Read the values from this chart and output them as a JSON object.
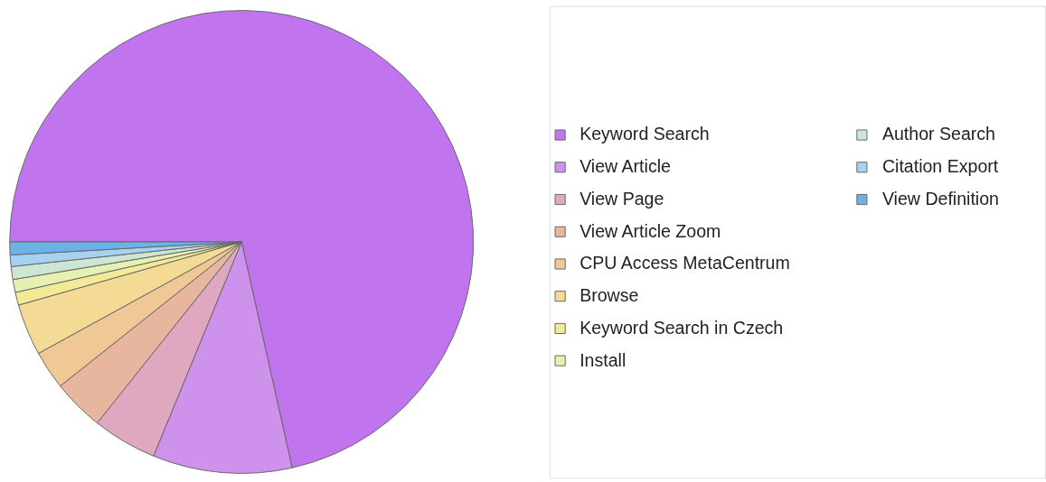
{
  "chart_data": {
    "type": "pie",
    "categories": [
      "Keyword Search",
      "View Article",
      "View Page",
      "View Article Zoom",
      "CPU Access MetaCentrum",
      "Browse",
      "Keyword Search in Czech",
      "Install",
      "Author Search",
      "Citation Export",
      "View Definition"
    ],
    "values": [
      71.5,
      9.7,
      4.5,
      3.6,
      2.7,
      3.6,
      0.9,
      0.9,
      0.9,
      0.8,
      0.9
    ],
    "colors": [
      "#c075ee",
      "#cf92ec",
      "#dfa7c0",
      "#e8b59f",
      "#f0c896",
      "#f3da95",
      "#f2ea96",
      "#e6f0b0",
      "#cde5d3",
      "#a6d2ef",
      "#6ab2e8"
    ],
    "legend": "right"
  }
}
